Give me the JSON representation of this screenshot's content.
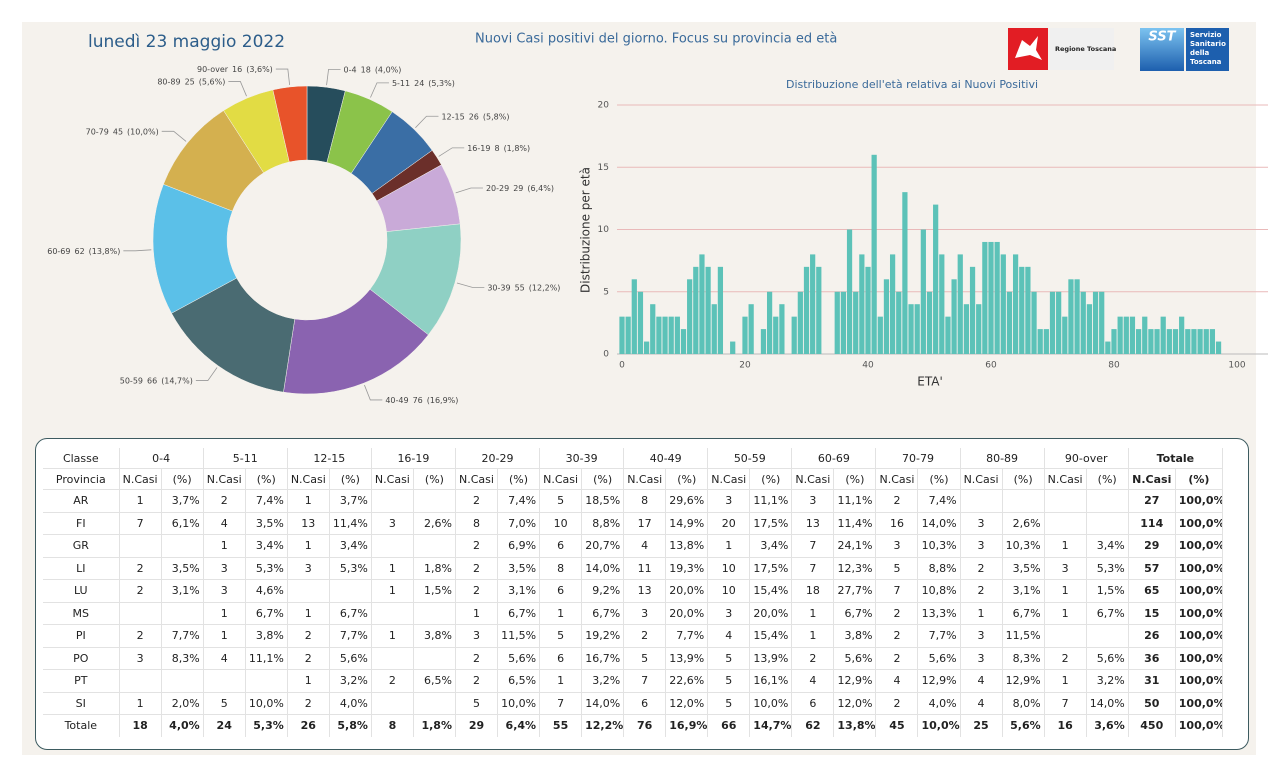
{
  "header": {
    "date": "lunedì 23 maggio 2022",
    "title": "Nuovi Casi positivi del giorno. Focus su provincia ed età",
    "logo_left": "Regione Toscana",
    "logo_right": "SST",
    "logo_right_text": [
      "Servizio",
      "Sanitario",
      "della",
      "Toscana"
    ]
  },
  "chart_data": [
    {
      "type": "pie",
      "categories": [
        "0-4",
        "5-11",
        "12-15",
        "16-19",
        "20-29",
        "30-39",
        "40-49",
        "50-59",
        "60-69",
        "70-79",
        "80-89",
        "90-over"
      ],
      "values": [
        18,
        24,
        26,
        8,
        29,
        55,
        76,
        66,
        62,
        45,
        25,
        16
      ],
      "shares": [
        "(4,0%)",
        "(5,3%)",
        "(5,8%)",
        "(1,8%)",
        "(6,4%)",
        "(12,2%)",
        "(16,9%)",
        "(14,7%)",
        "(13,8%)",
        "(10,0%)",
        "(5,6%)",
        "(3,6%)"
      ],
      "colors": [
        "#264d5c",
        "#8bc34a",
        "#3a6ea5",
        "#6b2f2a",
        "#c9aad8",
        "#8fd0c4",
        "#8a63b0",
        "#4a6b72",
        "#5bc0e8",
        "#d4b04f",
        "#e2dc44",
        "#e8532a"
      ]
    },
    {
      "type": "bar",
      "title": "Distribuzione dell'età relativa ai Nuovi Positivi",
      "x_label": "ETA'",
      "y_label": "Distribuzione per età",
      "x": [
        0,
        1,
        2,
        3,
        4,
        5,
        6,
        7,
        8,
        9,
        10,
        11,
        12,
        13,
        14,
        15,
        16,
        17,
        18,
        19,
        20,
        21,
        22,
        23,
        24,
        25,
        26,
        27,
        28,
        29,
        30,
        31,
        32,
        33,
        34,
        35,
        36,
        37,
        38,
        39,
        40,
        41,
        42,
        43,
        44,
        45,
        46,
        47,
        48,
        49,
        50,
        51,
        52,
        53,
        54,
        55,
        56,
        57,
        58,
        59,
        60,
        61,
        62,
        63,
        64,
        65,
        66,
        67,
        68,
        69,
        70,
        71,
        72,
        73,
        74,
        75,
        76,
        77,
        78,
        79,
        80,
        81,
        82,
        83,
        84,
        85,
        86,
        87,
        88,
        89,
        90,
        91,
        92,
        93,
        94,
        95,
        96,
        97
      ],
      "values": [
        3,
        3,
        6,
        5,
        1,
        4,
        3,
        3,
        3,
        3,
        2,
        6,
        7,
        8,
        7,
        4,
        7,
        0,
        1,
        0,
        3,
        4,
        0,
        2,
        5,
        3,
        4,
        0,
        3,
        5,
        7,
        8,
        7,
        0,
        0,
        5,
        5,
        10,
        5,
        8,
        7,
        16,
        3,
        6,
        8,
        5,
        13,
        4,
        4,
        10,
        5,
        12,
        8,
        3,
        6,
        8,
        4,
        7,
        4,
        9,
        9,
        9,
        8,
        5,
        8,
        7,
        7,
        5,
        2,
        2,
        5,
        5,
        3,
        6,
        6,
        5,
        4,
        5,
        5,
        1,
        2,
        3,
        3,
        3,
        2,
        3,
        2,
        2,
        3,
        2,
        2,
        3,
        2,
        2,
        2,
        2,
        2,
        1
      ],
      "color": "#5cc2b8",
      "xlim": [
        0,
        100
      ],
      "xticks": [
        0,
        20,
        40,
        60,
        80,
        100
      ],
      "ylim": [
        0,
        20
      ],
      "yticks": [
        0,
        5,
        10,
        15,
        20
      ],
      "grid": true
    }
  ],
  "table": {
    "header": [
      "Classe",
      "0-4",
      "5-11",
      "12-15",
      "16-19",
      "20-29",
      "30-39",
      "40-49",
      "50-59",
      "60-69",
      "70-79",
      "80-89",
      "90-over",
      "Totale"
    ],
    "subheader": [
      "Provincia",
      "N.Casi",
      "(%)",
      "N.Casi",
      "(%)",
      "N.Casi",
      "(%)",
      "N.Casi",
      "(%)",
      "N.Casi",
      "(%)",
      "N.Casi",
      "(%)",
      "N.Casi",
      "(%)",
      "N.Casi",
      "(%)",
      "N.Casi",
      "(%)",
      "N.Casi",
      "(%)",
      "N.Casi",
      "(%)",
      "N.Casi",
      "(%)",
      "N.Casi",
      "(%)"
    ],
    "rows": [
      [
        "AR",
        "1",
        "3,7%",
        "2",
        "7,4%",
        "1",
        "3,7%",
        null,
        null,
        "2",
        "7,4%",
        "5",
        "18,5%",
        "8",
        "29,6%",
        "3",
        "11,1%",
        "3",
        "11,1%",
        "2",
        "7,4%",
        null,
        null,
        null,
        null,
        "27",
        "100,0%"
      ],
      [
        "FI",
        "7",
        "6,1%",
        "4",
        "3,5%",
        "13",
        "11,4%",
        "3",
        "2,6%",
        "8",
        "7,0%",
        "10",
        "8,8%",
        "17",
        "14,9%",
        "20",
        "17,5%",
        "13",
        "11,4%",
        "16",
        "14,0%",
        "3",
        "2,6%",
        null,
        null,
        "114",
        "100,0%"
      ],
      [
        "GR",
        null,
        null,
        "1",
        "3,4%",
        "1",
        "3,4%",
        null,
        null,
        "2",
        "6,9%",
        "6",
        "20,7%",
        "4",
        "13,8%",
        "1",
        "3,4%",
        "7",
        "24,1%",
        "3",
        "10,3%",
        "3",
        "10,3%",
        "1",
        "3,4%",
        "29",
        "100,0%"
      ],
      [
        "LI",
        "2",
        "3,5%",
        "3",
        "5,3%",
        "3",
        "5,3%",
        "1",
        "1,8%",
        "2",
        "3,5%",
        "8",
        "14,0%",
        "11",
        "19,3%",
        "10",
        "17,5%",
        "7",
        "12,3%",
        "5",
        "8,8%",
        "2",
        "3,5%",
        "3",
        "5,3%",
        "57",
        "100,0%"
      ],
      [
        "LU",
        "2",
        "3,1%",
        "3",
        "4,6%",
        null,
        null,
        "1",
        "1,5%",
        "2",
        "3,1%",
        "6",
        "9,2%",
        "13",
        "20,0%",
        "10",
        "15,4%",
        "18",
        "27,7%",
        "7",
        "10,8%",
        "2",
        "3,1%",
        "1",
        "1,5%",
        "65",
        "100,0%"
      ],
      [
        "MS",
        null,
        null,
        "1",
        "6,7%",
        "1",
        "6,7%",
        null,
        null,
        "1",
        "6,7%",
        "1",
        "6,7%",
        "3",
        "20,0%",
        "3",
        "20,0%",
        "1",
        "6,7%",
        "2",
        "13,3%",
        "1",
        "6,7%",
        "1",
        "6,7%",
        "15",
        "100,0%"
      ],
      [
        "PI",
        "2",
        "7,7%",
        "1",
        "3,8%",
        "2",
        "7,7%",
        "1",
        "3,8%",
        "3",
        "11,5%",
        "5",
        "19,2%",
        "2",
        "7,7%",
        "4",
        "15,4%",
        "1",
        "3,8%",
        "2",
        "7,7%",
        "3",
        "11,5%",
        null,
        null,
        "26",
        "100,0%"
      ],
      [
        "PO",
        "3",
        "8,3%",
        "4",
        "11,1%",
        "2",
        "5,6%",
        null,
        null,
        "2",
        "5,6%",
        "6",
        "16,7%",
        "5",
        "13,9%",
        "5",
        "13,9%",
        "2",
        "5,6%",
        "2",
        "5,6%",
        "3",
        "8,3%",
        "2",
        "5,6%",
        "36",
        "100,0%"
      ],
      [
        "PT",
        null,
        null,
        null,
        null,
        "1",
        "3,2%",
        "2",
        "6,5%",
        "2",
        "6,5%",
        "1",
        "3,2%",
        "7",
        "22,6%",
        "5",
        "16,1%",
        "4",
        "12,9%",
        "4",
        "12,9%",
        "4",
        "12,9%",
        "1",
        "3,2%",
        "31",
        "100,0%"
      ],
      [
        "SI",
        "1",
        "2,0%",
        "5",
        "10,0%",
        "2",
        "4,0%",
        null,
        null,
        "5",
        "10,0%",
        "7",
        "14,0%",
        "6",
        "12,0%",
        "5",
        "10,0%",
        "6",
        "12,0%",
        "2",
        "4,0%",
        "4",
        "8,0%",
        "7",
        "14,0%",
        "50",
        "100,0%"
      ],
      [
        "Totale",
        "18",
        "4,0%",
        "24",
        "5,3%",
        "26",
        "5,8%",
        "8",
        "1,8%",
        "29",
        "6,4%",
        "55",
        "12,2%",
        "76",
        "16,9%",
        "66",
        "14,7%",
        "62",
        "13,8%",
        "45",
        "10,0%",
        "25",
        "5,6%",
        "16",
        "3,6%",
        "450",
        "100,0%"
      ]
    ]
  }
}
